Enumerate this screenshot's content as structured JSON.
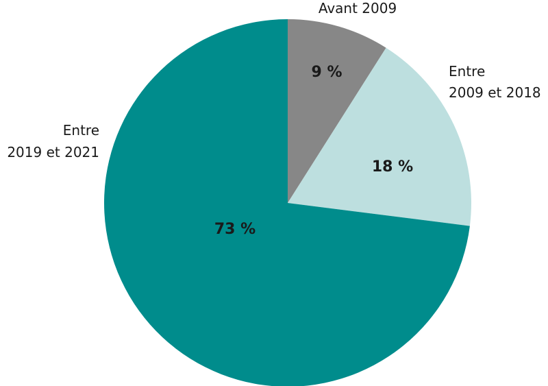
{
  "chart_data": {
    "type": "pie",
    "title": "",
    "start": "12 o'clock, clockwise",
    "slices": [
      {
        "label_lines": [
          "Avant 2009"
        ],
        "value": 9,
        "value_label": "9 %",
        "color": "#878787"
      },
      {
        "label_lines": [
          "Entre",
          "2009 et 2018"
        ],
        "value": 18,
        "value_label": "18 %",
        "color": "#bddfdf"
      },
      {
        "label_lines": [
          "Entre",
          "2019 et 2021"
        ],
        "value": 73,
        "value_label": "73 %",
        "color": "#008c8c"
      }
    ]
  }
}
